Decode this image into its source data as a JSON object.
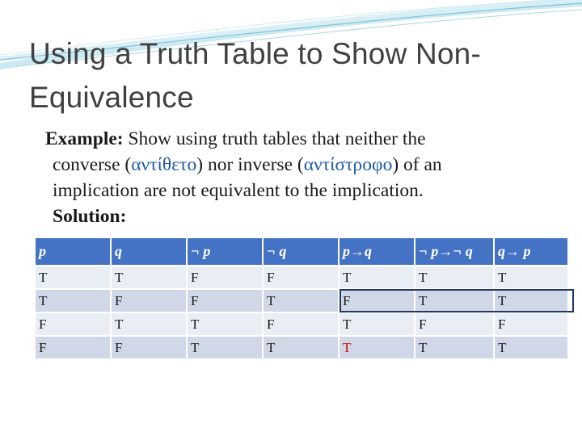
{
  "slide": {
    "title": "Using a Truth Table to Show  Non-Equivalence",
    "example": {
      "label": "Example",
      "colon": ":",
      "line1_rest": " Show using truth tables that neither  the",
      "line2_pre": "converse (",
      "line2_greek1": "αντίθετο",
      "line2_mid": ") nor inverse (",
      "line2_greek2": "αντίστροφο",
      "line2_post": ") of an",
      "line3": "implication are not equivalent to the implication."
    },
    "solution_label": "Solution:"
  },
  "table": {
    "headers": [
      "p",
      "q",
      "¬ p",
      "¬ q",
      "p→q",
      "¬ p→¬ q",
      "q→ p"
    ],
    "rows": [
      [
        "T",
        "T",
        "F",
        "F",
        "T",
        "T",
        "T"
      ],
      [
        "T",
        "F",
        "F",
        "T",
        "F",
        "T",
        "T"
      ],
      [
        "F",
        "T",
        "T",
        "F",
        "T",
        "F",
        "F"
      ],
      [
        "F",
        "F",
        "T",
        "T",
        "T",
        "T",
        "T"
      ]
    ],
    "highlighted_row_index": 1,
    "red_cell": {
      "row": 3,
      "col": 4
    }
  },
  "colors": {
    "title": "#404040",
    "header_bg": "#4472c4",
    "row_light": "#e9edf4",
    "row_dark": "#d0d8e8",
    "greek_text": "#1f5aa8",
    "red_value": "#d20000",
    "highlight_border": "#1f3864"
  }
}
